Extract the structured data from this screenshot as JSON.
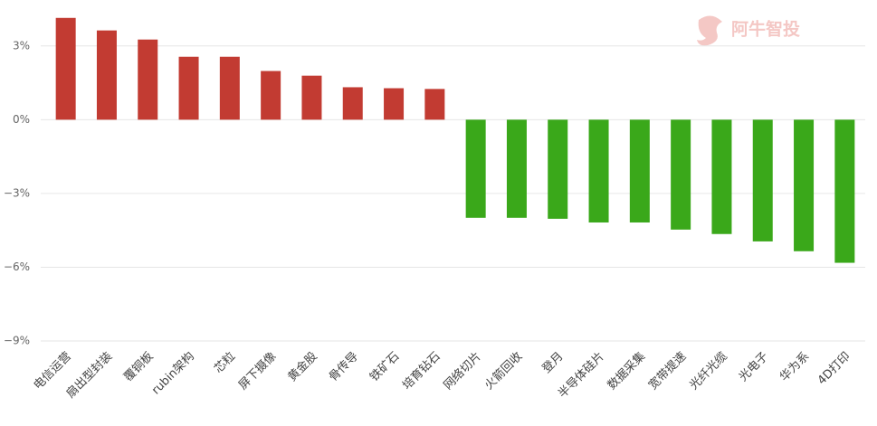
{
  "chart_data": {
    "type": "bar",
    "watermark": "阿牛智投",
    "categories": [
      "电信运营",
      "扇出型封装",
      "覆铜板",
      "rubin架构",
      "芯粒",
      "屏下摄像",
      "黄金股",
      "骨传导",
      "铁矿石",
      "培育钻石",
      "网络切片",
      "火箭回收",
      "登月",
      "半导体硅片",
      "数据采集",
      "宽带提速",
      "光纤光缆",
      "光电子",
      "华为系",
      "4D打印"
    ],
    "values": [
      4.14,
      3.63,
      3.26,
      2.56,
      2.56,
      1.98,
      1.79,
      1.32,
      1.28,
      1.25,
      -3.99,
      -3.99,
      -4.03,
      -4.18,
      -4.18,
      -4.47,
      -4.65,
      -4.95,
      -5.35,
      -5.82
    ],
    "positive_color": "#c23b32",
    "negative_color": "#3aa81a",
    "ylim": [
      -9,
      4.5
    ],
    "yticks": [
      {
        "value": 3,
        "label": "3%"
      },
      {
        "value": 0,
        "label": "0%"
      },
      {
        "value": -3,
        "label": "−3%"
      },
      {
        "value": -6,
        "label": "−6%"
      },
      {
        "value": -9,
        "label": "−9%"
      }
    ],
    "grid": true
  }
}
